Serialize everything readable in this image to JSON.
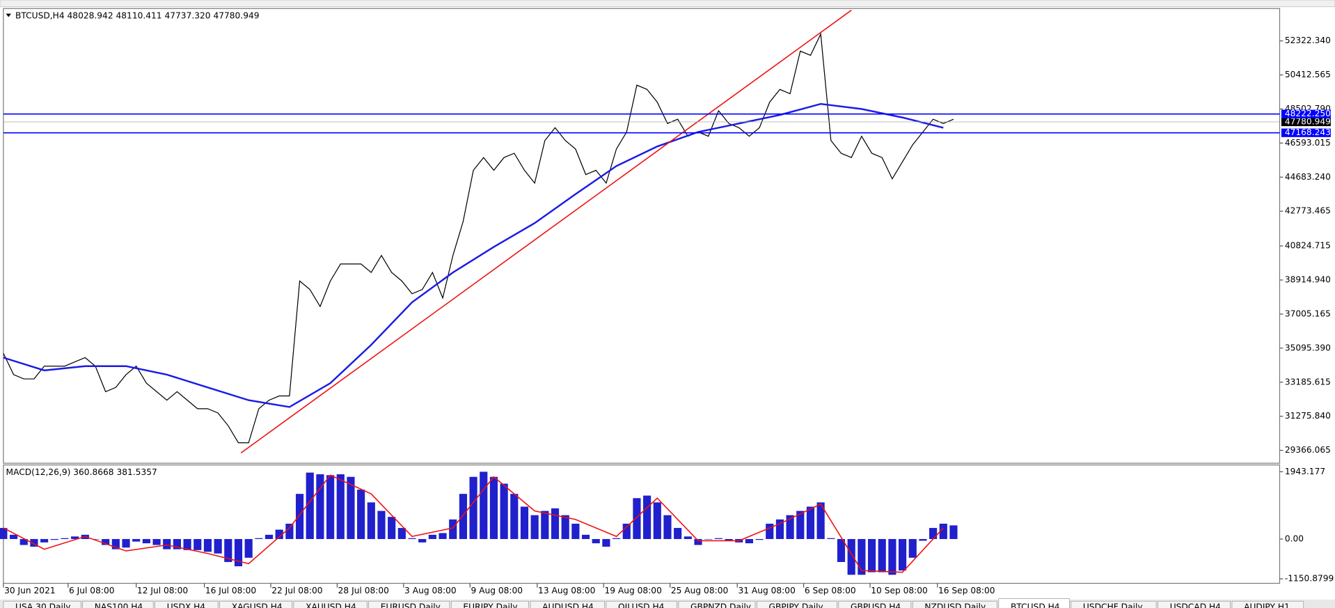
{
  "title": "BTCUSD,H4  48028.942 48110.411 47737.320 47780.949",
  "chart_data": [
    {
      "type": "line",
      "color": "#000000",
      "values": [
        34801,
        33608,
        33369,
        33369,
        34085,
        34085,
        34085,
        34324,
        34563,
        34085,
        32653,
        32892,
        33608,
        34085,
        33131,
        32653,
        32176,
        32653,
        32176,
        31698,
        31698,
        31460,
        30744,
        29789,
        29789,
        31698,
        32176,
        32414,
        32414,
        38859,
        38382,
        37427,
        38859,
        39814,
        39814,
        39814,
        39337,
        40292,
        39337,
        38859,
        38143,
        38382,
        39337,
        37905,
        40292,
        42201,
        45066,
        45782,
        45066,
        45782,
        46020,
        45066,
        44349,
        46736,
        47453,
        46736,
        46259,
        44827,
        45066,
        44349,
        46259,
        47214,
        49840,
        49601,
        48885,
        47691,
        47930,
        46975,
        47214,
        46975,
        48407,
        47691,
        47453,
        46975,
        47453,
        48885,
        49601,
        49362,
        51749,
        51510,
        52704,
        46736,
        46020,
        45782,
        46975,
        46020,
        45782,
        44588,
        45543,
        46498,
        47214,
        47930,
        47691,
        47930
      ],
      "moving_average": {
        "color": "#1a1ae6",
        "x": [
          0,
          4,
          8,
          12,
          16,
          20,
          24,
          28,
          32,
          36,
          40,
          44,
          48,
          52,
          56,
          60,
          64,
          68,
          72,
          76,
          80,
          84,
          88,
          92
        ],
        "values": [
          34563,
          33847,
          34085,
          34085,
          33608,
          32892,
          32176,
          31794,
          33131,
          35279,
          37666,
          39337,
          40769,
          42106,
          43729,
          45304,
          46402,
          47214,
          47691,
          48169,
          48789,
          48503,
          48025,
          47453
        ]
      },
      "trendline": {
        "color": "#ee1111",
        "x": [
          23.25,
          83
        ],
        "values": [
          29216,
          54041
        ]
      },
      "levels": [
        {
          "value": 48222.25,
          "label": "48222.250",
          "color": "#0000ff"
        },
        {
          "value": 47168.243,
          "label": "47168.243",
          "color": "#0000ff"
        }
      ],
      "current_price": 47780.949,
      "xlim": [
        0,
        124.92
      ],
      "xticks": [
        {
          "value": 0,
          "label": "30 Jun 2021"
        },
        {
          "value": 6.33,
          "label": "6 Jul 08:00"
        },
        {
          "value": 13,
          "label": "12 Jul 08:00"
        },
        {
          "value": 19.67,
          "label": "16 Jul 08:00"
        },
        {
          "value": 26.17,
          "label": "22 Jul 08:00"
        },
        {
          "value": 32.67,
          "label": "28 Jul 08:00"
        },
        {
          "value": 39.17,
          "label": "3 Aug 08:00"
        },
        {
          "value": 45.67,
          "label": "9 Aug 08:00"
        },
        {
          "value": 52.25,
          "label": "13 Aug 08:00"
        },
        {
          "value": 58.75,
          "label": "19 Aug 08:00"
        },
        {
          "value": 65.25,
          "label": "25 Aug 08:00"
        },
        {
          "value": 71.83,
          "label": "31 Aug 08:00"
        },
        {
          "value": 78.33,
          "label": "6 Sep 08:00"
        },
        {
          "value": 84.83,
          "label": "10 Sep 08:00"
        },
        {
          "value": 91.42,
          "label": "16 Sep 08:00"
        }
      ],
      "ylim": [
        28641,
        54137
      ],
      "yticks": [
        {
          "value": 52322.34,
          "label": "52322.340"
        },
        {
          "value": 50412.565,
          "label": "50412.565"
        },
        {
          "value": 48502.79,
          "label": "48502.790"
        },
        {
          "value": 46593.015,
          "label": "46593.015"
        },
        {
          "value": 44683.24,
          "label": "44683.240"
        },
        {
          "value": 42773.465,
          "label": "42773.465"
        },
        {
          "value": 40824.715,
          "label": "40824.715"
        },
        {
          "value": 38914.94,
          "label": "38914.940"
        },
        {
          "value": 37005.165,
          "label": "37005.165"
        },
        {
          "value": 35095.39,
          "label": "35095.390"
        },
        {
          "value": 33185.615,
          "label": "33185.615"
        },
        {
          "value": 31275.84,
          "label": "31275.840"
        },
        {
          "value": 29366.065,
          "label": "29366.065"
        }
      ]
    },
    {
      "type": "bar",
      "title": "MACD(12,26,9) 360.8668 381.5357",
      "color": "#2020cc",
      "values": [
        320,
        123,
        -172,
        -221,
        -98,
        -25,
        25,
        74,
        123,
        0,
        -172,
        -295,
        -246,
        -74,
        -123,
        -172,
        -295,
        -295,
        -320,
        -320,
        -369,
        -418,
        -664,
        -787,
        -541,
        25,
        123,
        271,
        443,
        1304,
        1919,
        1870,
        1845,
        1870,
        1796,
        1427,
        1058,
        812,
        640,
        320,
        25,
        -98,
        123,
        172,
        566,
        1304,
        1796,
        1943,
        1796,
        1599,
        1304,
        935,
        689,
        812,
        886,
        689,
        443,
        123,
        -123,
        -221,
        25,
        443,
        1181,
        1255,
        1058,
        689,
        320,
        74,
        -172,
        0,
        25,
        -49,
        -98,
        -123,
        -25,
        443,
        566,
        689,
        812,
        935,
        1058,
        25,
        -664,
        -1033,
        -1033,
        -959,
        -959,
        -1033,
        -910,
        -541,
        -49,
        320,
        443,
        394
      ],
      "signal": {
        "color": "#ee1111",
        "x": [
          0,
          4,
          8,
          12,
          16,
          20,
          24,
          28,
          32,
          36,
          40,
          44,
          48,
          52,
          56,
          60,
          64,
          68,
          72,
          76,
          80,
          84,
          88,
          92
        ],
        "values": [
          320,
          -295,
          74,
          -344,
          -172,
          -418,
          -713,
          320,
          1845,
          1304,
          74,
          320,
          1796,
          812,
          566,
          74,
          1181,
          -49,
          -49,
          443,
          1009,
          -910,
          -959,
          320
        ]
      },
      "xlim": [
        0,
        124.92
      ],
      "ylim": [
        -1279,
        2140
      ],
      "yticks": [
        {
          "value": 1943.177,
          "label": "1943.177"
        },
        {
          "value": 0,
          "label": "0.00"
        },
        {
          "value": -1150.8799,
          "label": "-1150.8799"
        }
      ]
    }
  ],
  "tabs": [
    "USA 30,Daily",
    "NAS100,H4",
    "USDX,H4",
    "XAGUSD,H4",
    "XAUUSD,H4",
    "EURUSD,Daily",
    "EURJPY,Daily",
    "AUDUSD,H4",
    "OILUSD,H4",
    "GBPNZD,Daily",
    "GBPJPY,Daily",
    "GBPUSD,H4",
    "NZDUSD,Daily",
    "BTCUSD,H4",
    "USDCHF,Daily",
    "USDCAD,H4",
    "AUDJPY,H1"
  ],
  "active_tab": 13
}
